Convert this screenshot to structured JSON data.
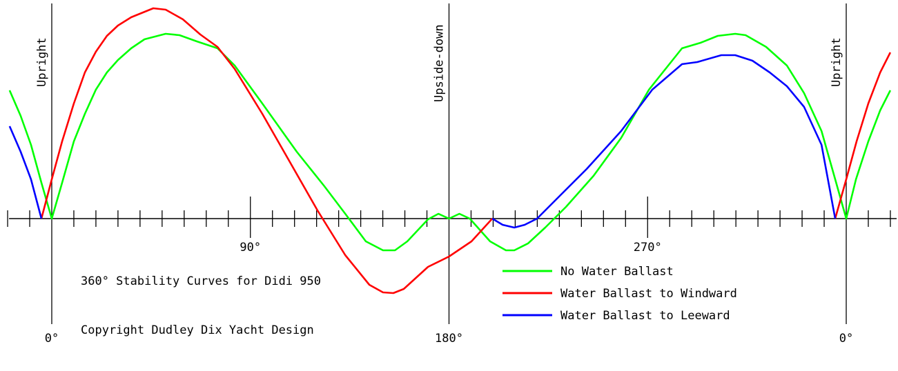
{
  "chart_data": {
    "type": "line",
    "title": "360° Stability Curves for Didi 950",
    "copyright": "Copyright Dudley Dix Yacht Design",
    "xlabel": "",
    "ylabel": "",
    "xlim": [
      -20,
      382
    ],
    "x_major_ticks": [
      {
        "value": 0,
        "label": "0°"
      },
      {
        "value": 90,
        "label": "90°"
      },
      {
        "value": 180,
        "label": "180°"
      },
      {
        "value": 270,
        "label": "270°"
      },
      {
        "value": 360,
        "label": "0°"
      }
    ],
    "x_minor_tick_step": 10,
    "annotations": [
      {
        "at": 0,
        "label": "Upright"
      },
      {
        "at": 180,
        "label": "Upside-down"
      },
      {
        "at": 360,
        "label": "Upright"
      }
    ],
    "y_units": "relative righting moment (unlabeled axis)",
    "grid": false,
    "legend_placement": "bottom-right",
    "series": [
      {
        "name": "No Water Ballast",
        "color": "#00ff00",
        "segments": [
          [
            [
              -19.1,
              1.86
            ],
            [
              -14.1,
              1.49
            ],
            [
              -9.4,
              1.07
            ],
            [
              -4.7,
              0.52
            ],
            [
              0,
              0
            ],
            [
              4.7,
              0.52
            ],
            [
              10,
              1.12
            ],
            [
              15,
              1.52
            ],
            [
              20,
              1.87
            ],
            [
              25,
              2.12
            ],
            [
              30,
              2.3
            ],
            [
              36,
              2.47
            ],
            [
              42,
              2.6
            ],
            [
              51.6,
              2.68
            ],
            [
              57.9,
              2.66
            ],
            [
              65.7,
              2.57
            ],
            [
              75.1,
              2.47
            ],
            [
              82.9,
              2.22
            ],
            [
              95.4,
              1.67
            ],
            [
              111,
              0.97
            ],
            [
              123.5,
              0.47
            ],
            [
              133,
              0.07
            ],
            [
              142.3,
              -0.33
            ],
            [
              150.1,
              -0.46
            ],
            [
              155.5,
              -0.46
            ],
            [
              161.1,
              -0.33
            ],
            [
              170.5,
              -0.01
            ],
            [
              175.2,
              0.07
            ],
            [
              180,
              0
            ],
            [
              184.7,
              0.07
            ],
            [
              189.4,
              0
            ],
            [
              198.6,
              -0.33
            ],
            [
              205.8,
              -0.46
            ],
            [
              209.6,
              -0.46
            ],
            [
              215.8,
              -0.36
            ],
            [
              223.6,
              -0.13
            ],
            [
              233,
              0.17
            ],
            [
              245.5,
              0.62
            ],
            [
              258,
              1.17
            ],
            [
              270.6,
              1.87
            ],
            [
              285.6,
              2.47
            ],
            [
              294,
              2.55
            ],
            [
              301.8,
              2.65
            ],
            [
              309.7,
              2.68
            ],
            [
              314.4,
              2.66
            ],
            [
              323.7,
              2.49
            ],
            [
              333.1,
              2.22
            ],
            [
              340.9,
              1.82
            ],
            [
              348.8,
              1.27
            ],
            [
              355,
              0.57
            ],
            [
              360,
              0
            ],
            [
              364.4,
              0.57
            ],
            [
              370,
              1.12
            ],
            [
              375.4,
              1.57
            ],
            [
              380,
              1.86
            ]
          ]
        ]
      },
      {
        "name": "Water Ballast to Windward",
        "color": "#ff0000",
        "segments": [
          [
            [
              -4.7,
              0
            ],
            [
              0,
              0.57
            ],
            [
              4.7,
              1.12
            ],
            [
              10,
              1.67
            ],
            [
              15,
              2.12
            ],
            [
              20,
              2.42
            ],
            [
              25,
              2.65
            ],
            [
              30,
              2.8
            ],
            [
              36,
              2.92
            ],
            [
              46,
              3.05
            ],
            [
              51.6,
              3.03
            ],
            [
              59.4,
              2.89
            ],
            [
              67.3,
              2.67
            ],
            [
              75.1,
              2.49
            ],
            [
              82.9,
              2.17
            ],
            [
              95.4,
              1.52
            ],
            [
              107.9,
              0.82
            ],
            [
              120.4,
              0.12
            ],
            [
              133,
              -0.53
            ],
            [
              143.9,
              -0.96
            ],
            [
              150.1,
              -1.07
            ],
            [
              154.8,
              -1.08
            ],
            [
              159.5,
              -1.02
            ],
            [
              170.5,
              -0.7
            ],
            [
              180,
              -0.55
            ],
            [
              190.2,
              -0.33
            ],
            [
              199.6,
              0
            ]
          ],
          [
            [
              355,
              0
            ],
            [
              360,
              0.57
            ],
            [
              364.7,
              1.12
            ],
            [
              370,
              1.67
            ],
            [
              375.4,
              2.12
            ],
            [
              380,
              2.41
            ]
          ]
        ]
      },
      {
        "name": "Water Ballast to Leeward",
        "color": "#0000ff",
        "segments": [
          [
            [
              -19.1,
              1.34
            ],
            [
              -14.1,
              0.97
            ],
            [
              -9.4,
              0.57
            ],
            [
              -4.7,
              0
            ]
          ],
          [
            [
              199.6,
              0
            ],
            [
              204.3,
              -0.09
            ],
            [
              209.6,
              -0.13
            ],
            [
              214.3,
              -0.09
            ],
            [
              219.9,
              0
            ],
            [
              229.9,
              0.32
            ],
            [
              242.4,
              0.72
            ],
            [
              258,
              1.27
            ],
            [
              272.1,
              1.87
            ],
            [
              285.6,
              2.24
            ],
            [
              292.5,
              2.27
            ],
            [
              303.4,
              2.37
            ],
            [
              309.7,
              2.37
            ],
            [
              317.5,
              2.29
            ],
            [
              325.3,
              2.12
            ],
            [
              333.1,
              1.92
            ],
            [
              340.9,
              1.62
            ],
            [
              348.8,
              1.07
            ],
            [
              355,
              0
            ]
          ]
        ]
      }
    ]
  }
}
